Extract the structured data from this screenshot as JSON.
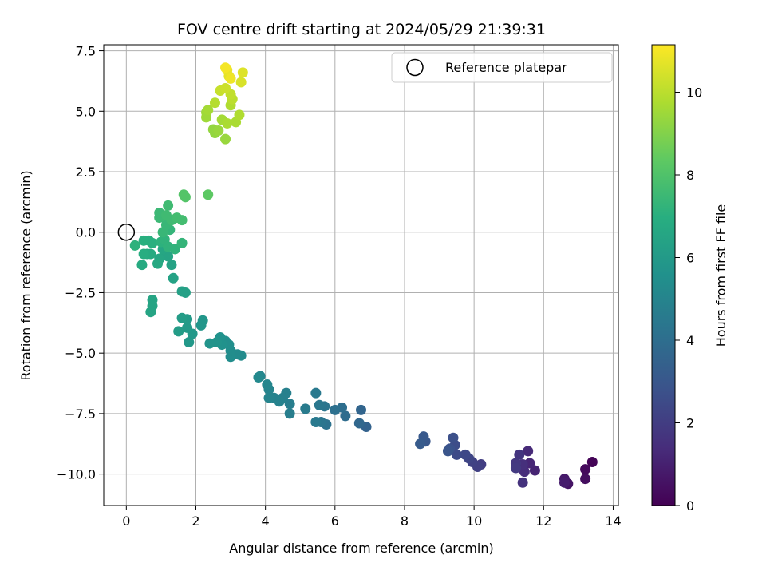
{
  "chart_data": {
    "type": "scatter",
    "title": "FOV centre drift starting at 2024/05/29 21:39:31",
    "xlabel": "Angular distance from reference (arcmin)",
    "ylabel": "Rotation from reference (arcmin)",
    "xlim": [
      -0.65,
      14.15
    ],
    "ylim": [
      -11.3,
      7.75
    ],
    "x_ticks": [
      0,
      2,
      4,
      6,
      8,
      10,
      12,
      14
    ],
    "x_tick_labels": [
      "0",
      "2",
      "4",
      "6",
      "8",
      "10",
      "12",
      "14"
    ],
    "y_ticks": [
      -10.0,
      -7.5,
      -5.0,
      -2.5,
      0.0,
      2.5,
      5.0,
      7.5
    ],
    "y_tick_labels": [
      "−10.0",
      "−7.5",
      "−5.0",
      "−2.5",
      "0.0",
      "2.5",
      "5.0",
      "7.5"
    ],
    "grid": true,
    "colormap": "viridis",
    "colorbar": {
      "label": "Hours from first FF file",
      "range": [
        0,
        11.15
      ],
      "ticks": [
        0,
        2,
        4,
        6,
        8,
        10
      ],
      "tick_labels": [
        "0",
        "2",
        "4",
        "6",
        "8",
        "10"
      ]
    },
    "legend": {
      "label": "Reference platepar",
      "position": "top-right"
    },
    "reference_point": {
      "x": 0,
      "y": 0
    },
    "points": [
      {
        "x": 13.4,
        "y": -9.5,
        "c": 0.1
      },
      {
        "x": 13.2,
        "y": -9.8,
        "c": 0.3
      },
      {
        "x": 13.2,
        "y": -10.2,
        "c": 0.4
      },
      {
        "x": 12.7,
        "y": -10.4,
        "c": 0.6
      },
      {
        "x": 12.6,
        "y": -10.2,
        "c": 0.8
      },
      {
        "x": 12.6,
        "y": -10.35,
        "c": 0.9
      },
      {
        "x": 11.75,
        "y": -9.85,
        "c": 1.1
      },
      {
        "x": 11.6,
        "y": -9.55,
        "c": 1.2
      },
      {
        "x": 11.55,
        "y": -9.05,
        "c": 1.3
      },
      {
        "x": 11.45,
        "y": -9.9,
        "c": 1.4
      },
      {
        "x": 11.4,
        "y": -9.6,
        "c": 1.5
      },
      {
        "x": 11.4,
        "y": -10.35,
        "c": 1.6
      },
      {
        "x": 11.3,
        "y": -9.2,
        "c": 1.7
      },
      {
        "x": 11.2,
        "y": -9.55,
        "c": 1.8
      },
      {
        "x": 11.2,
        "y": -9.75,
        "c": 1.9
      },
      {
        "x": 10.2,
        "y": -9.6,
        "c": 2.0
      },
      {
        "x": 10.1,
        "y": -9.7,
        "c": 2.1
      },
      {
        "x": 9.95,
        "y": -9.5,
        "c": 2.2
      },
      {
        "x": 9.85,
        "y": -9.35,
        "c": 2.3
      },
      {
        "x": 9.75,
        "y": -9.2,
        "c": 2.4
      },
      {
        "x": 9.5,
        "y": -9.2,
        "c": 2.5
      },
      {
        "x": 9.45,
        "y": -8.8,
        "c": 2.6
      },
      {
        "x": 9.4,
        "y": -8.5,
        "c": 2.7
      },
      {
        "x": 9.3,
        "y": -8.95,
        "c": 2.8
      },
      {
        "x": 9.25,
        "y": -9.05,
        "c": 2.9
      },
      {
        "x": 8.6,
        "y": -8.65,
        "c": 3.0
      },
      {
        "x": 8.55,
        "y": -8.45,
        "c": 3.1
      },
      {
        "x": 8.45,
        "y": -8.75,
        "c": 3.2
      },
      {
        "x": 6.9,
        "y": -8.05,
        "c": 3.5
      },
      {
        "x": 6.75,
        "y": -7.35,
        "c": 3.6
      },
      {
        "x": 6.7,
        "y": -7.9,
        "c": 3.7
      },
      {
        "x": 6.3,
        "y": -7.6,
        "c": 3.9
      },
      {
        "x": 6.2,
        "y": -7.25,
        "c": 4.0
      },
      {
        "x": 6.0,
        "y": -7.35,
        "c": 4.1
      },
      {
        "x": 5.75,
        "y": -7.95,
        "c": 4.2
      },
      {
        "x": 5.7,
        "y": -7.2,
        "c": 4.3
      },
      {
        "x": 5.6,
        "y": -7.85,
        "c": 4.3
      },
      {
        "x": 5.55,
        "y": -7.15,
        "c": 4.4
      },
      {
        "x": 5.45,
        "y": -7.85,
        "c": 4.5
      },
      {
        "x": 5.45,
        "y": -6.65,
        "c": 4.5
      },
      {
        "x": 5.15,
        "y": -7.3,
        "c": 4.6
      },
      {
        "x": 4.7,
        "y": -7.5,
        "c": 4.7
      },
      {
        "x": 4.7,
        "y": -7.1,
        "c": 4.7
      },
      {
        "x": 4.6,
        "y": -6.65,
        "c": 4.8
      },
      {
        "x": 4.5,
        "y": -6.85,
        "c": 4.8
      },
      {
        "x": 4.4,
        "y": -7.0,
        "c": 4.9
      },
      {
        "x": 4.25,
        "y": -6.85,
        "c": 4.9
      },
      {
        "x": 4.1,
        "y": -6.85,
        "c": 5.0
      },
      {
        "x": 4.1,
        "y": -6.5,
        "c": 5.0
      },
      {
        "x": 4.05,
        "y": -6.3,
        "c": 5.1
      },
      {
        "x": 3.85,
        "y": -5.95,
        "c": 5.1
      },
      {
        "x": 3.8,
        "y": -6.0,
        "c": 5.2
      },
      {
        "x": 3.3,
        "y": -5.1,
        "c": 5.3
      },
      {
        "x": 3.2,
        "y": -5.05,
        "c": 5.3
      },
      {
        "x": 3.0,
        "y": -5.15,
        "c": 5.4
      },
      {
        "x": 3.0,
        "y": -4.9,
        "c": 5.4
      },
      {
        "x": 2.95,
        "y": -4.65,
        "c": 5.5
      },
      {
        "x": 2.85,
        "y": -4.5,
        "c": 5.5
      },
      {
        "x": 2.75,
        "y": -4.65,
        "c": 5.6
      },
      {
        "x": 2.7,
        "y": -4.35,
        "c": 5.6
      },
      {
        "x": 2.6,
        "y": -4.55,
        "c": 5.7
      },
      {
        "x": 2.4,
        "y": -4.6,
        "c": 5.7
      },
      {
        "x": 2.2,
        "y": -3.65,
        "c": 5.8
      },
      {
        "x": 2.15,
        "y": -3.85,
        "c": 5.8
      },
      {
        "x": 1.9,
        "y": -4.2,
        "c": 5.9
      },
      {
        "x": 1.8,
        "y": -4.55,
        "c": 5.9
      },
      {
        "x": 1.75,
        "y": -3.95,
        "c": 6.0
      },
      {
        "x": 1.75,
        "y": -3.6,
        "c": 6.0
      },
      {
        "x": 1.6,
        "y": -3.55,
        "c": 6.1
      },
      {
        "x": 1.5,
        "y": -4.1,
        "c": 6.1
      },
      {
        "x": 1.7,
        "y": -2.5,
        "c": 6.3
      },
      {
        "x": 1.6,
        "y": -2.45,
        "c": 6.3
      },
      {
        "x": 1.35,
        "y": -1.9,
        "c": 6.4
      },
      {
        "x": 1.3,
        "y": -1.35,
        "c": 6.4
      },
      {
        "x": 1.2,
        "y": -1.0,
        "c": 6.5
      },
      {
        "x": 1.1,
        "y": -0.85,
        "c": 6.5
      },
      {
        "x": 1.05,
        "y": -0.7,
        "c": 6.6
      },
      {
        "x": 0.95,
        "y": -1.1,
        "c": 6.6
      },
      {
        "x": 0.9,
        "y": -1.3,
        "c": 6.7
      },
      {
        "x": 0.75,
        "y": -2.8,
        "c": 6.5
      },
      {
        "x": 0.75,
        "y": -3.05,
        "c": 6.5
      },
      {
        "x": 0.7,
        "y": -3.3,
        "c": 6.5
      },
      {
        "x": 0.7,
        "y": -0.9,
        "c": 6.8
      },
      {
        "x": 0.6,
        "y": -0.9,
        "c": 6.8
      },
      {
        "x": 0.5,
        "y": -0.9,
        "c": 6.9
      },
      {
        "x": 0.45,
        "y": -1.35,
        "c": 6.8
      },
      {
        "x": 0.5,
        "y": -0.35,
        "c": 7.0
      },
      {
        "x": 0.65,
        "y": -0.35,
        "c": 7.0
      },
      {
        "x": 0.75,
        "y": -0.45,
        "c": 7.0
      },
      {
        "x": 0.25,
        "y": -0.55,
        "c": 7.1
      },
      {
        "x": 1.0,
        "y": -0.4,
        "c": 7.1
      },
      {
        "x": 1.1,
        "y": -0.3,
        "c": 7.2
      },
      {
        "x": 1.2,
        "y": -0.6,
        "c": 7.2
      },
      {
        "x": 1.4,
        "y": -0.7,
        "c": 7.2
      },
      {
        "x": 1.6,
        "y": -0.45,
        "c": 7.3
      },
      {
        "x": 1.25,
        "y": 0.1,
        "c": 7.3
      },
      {
        "x": 1.05,
        "y": 0.0,
        "c": 7.4
      },
      {
        "x": 1.15,
        "y": 0.3,
        "c": 7.4
      },
      {
        "x": 0.95,
        "y": 0.6,
        "c": 7.5
      },
      {
        "x": 0.95,
        "y": 0.8,
        "c": 7.5
      },
      {
        "x": 1.15,
        "y": 0.7,
        "c": 7.6
      },
      {
        "x": 1.2,
        "y": 1.1,
        "c": 7.6
      },
      {
        "x": 1.3,
        "y": 0.5,
        "c": 7.6
      },
      {
        "x": 1.45,
        "y": 0.6,
        "c": 7.7
      },
      {
        "x": 1.6,
        "y": 0.5,
        "c": 7.7
      },
      {
        "x": 1.65,
        "y": 1.55,
        "c": 8.1
      },
      {
        "x": 1.7,
        "y": 1.45,
        "c": 8.1
      },
      {
        "x": 2.35,
        "y": 1.55,
        "c": 8.3
      },
      {
        "x": 2.55,
        "y": 4.1,
        "c": 9.3
      },
      {
        "x": 2.5,
        "y": 4.25,
        "c": 9.3
      },
      {
        "x": 2.65,
        "y": 4.2,
        "c": 9.4
      },
      {
        "x": 2.85,
        "y": 3.85,
        "c": 9.4
      },
      {
        "x": 2.3,
        "y": 4.75,
        "c": 9.5
      },
      {
        "x": 2.3,
        "y": 4.95,
        "c": 9.5
      },
      {
        "x": 2.35,
        "y": 5.05,
        "c": 9.6
      },
      {
        "x": 2.75,
        "y": 4.65,
        "c": 9.6
      },
      {
        "x": 2.9,
        "y": 4.5,
        "c": 9.7
      },
      {
        "x": 3.15,
        "y": 4.55,
        "c": 9.7
      },
      {
        "x": 3.25,
        "y": 4.85,
        "c": 9.8
      },
      {
        "x": 3.0,
        "y": 5.25,
        "c": 9.8
      },
      {
        "x": 2.55,
        "y": 5.35,
        "c": 9.9
      },
      {
        "x": 3.05,
        "y": 5.5,
        "c": 10.0
      },
      {
        "x": 3.0,
        "y": 5.7,
        "c": 10.1
      },
      {
        "x": 2.7,
        "y": 5.85,
        "c": 10.2
      },
      {
        "x": 2.85,
        "y": 5.95,
        "c": 10.3
      },
      {
        "x": 3.3,
        "y": 6.2,
        "c": 10.5
      },
      {
        "x": 3.35,
        "y": 6.6,
        "c": 10.6
      },
      {
        "x": 2.95,
        "y": 6.45,
        "c": 10.7
      },
      {
        "x": 2.9,
        "y": 6.7,
        "c": 10.8
      },
      {
        "x": 2.85,
        "y": 6.8,
        "c": 11.0
      },
      {
        "x": 3.0,
        "y": 6.35,
        "c": 10.9
      }
    ]
  }
}
